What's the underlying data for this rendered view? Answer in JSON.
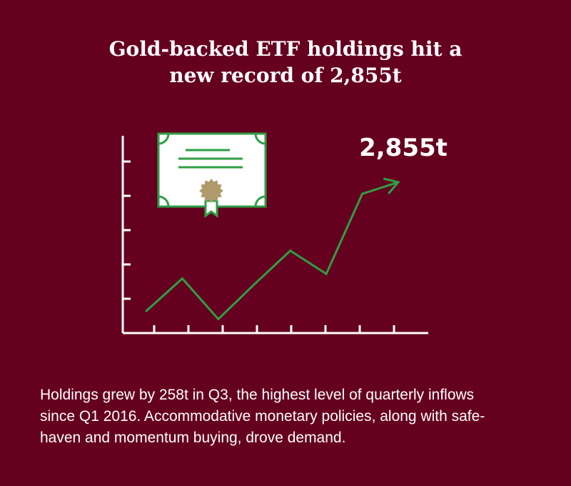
{
  "title": {
    "line1": "Gold-backed ETF holdings hit a",
    "line2": "new record of 2,855t"
  },
  "colors": {
    "background": "#650020",
    "line": "#2f9e44",
    "seal": "#b09a6b",
    "text": "#ffffff",
    "certificate": "#ffffff"
  },
  "icon": {
    "name": "certificate-icon"
  },
  "chart_data": {
    "type": "line",
    "title": "",
    "xlabel": "",
    "ylabel": "",
    "annotation": "2,855t",
    "x": [
      0,
      1,
      2,
      3,
      4,
      5,
      6,
      7
    ],
    "values": [
      0.45,
      1.85,
      0.1,
      1.6,
      3.05,
      2.05,
      5.5,
      6.0
    ],
    "ylim": [
      -0.5,
      8
    ],
    "x_tick_count": 8,
    "y_tick_count": 5,
    "grid": false,
    "arrow_end": true
  },
  "caption": {
    "line1": "Holdings grew by 258t in Q3, the highest level of quarterly inflows",
    "line2": "since Q1 2016. Accommodative monetary policies, along with safe-",
    "line3": "haven and momentum buying, drove demand."
  }
}
